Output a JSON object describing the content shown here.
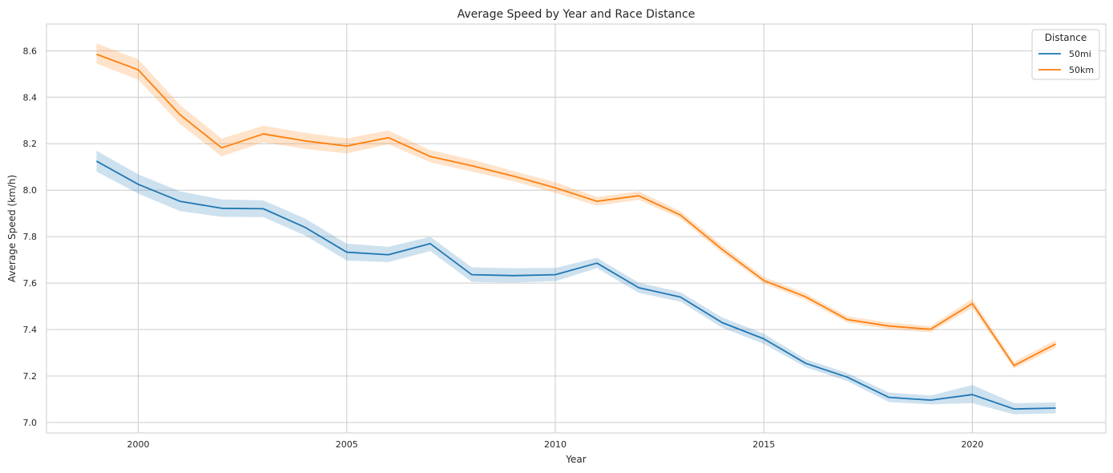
{
  "chart_data": {
    "type": "line",
    "title": "Average Speed by Year and Race Distance",
    "xlabel": "Year",
    "ylabel": "Average Speed (km/h)",
    "xlim": [
      1997.8,
      2023.2
    ],
    "ylim": [
      6.955,
      8.715
    ],
    "xticks": [
      2000,
      2005,
      2010,
      2015,
      2020
    ],
    "yticks": [
      7.0,
      7.2,
      7.4,
      7.6,
      7.8,
      8.0,
      8.2,
      8.4,
      8.6
    ],
    "grid": true,
    "legend": {
      "title": "Distance",
      "position": "top-right"
    },
    "x": [
      1999,
      2000,
      2001,
      2002,
      2003,
      2004,
      2005,
      2006,
      2007,
      2008,
      2009,
      2010,
      2011,
      2012,
      2013,
      2014,
      2015,
      2016,
      2017,
      2018,
      2019,
      2020,
      2021,
      2022
    ],
    "series": [
      {
        "name": "50mi",
        "color": "#1f77b4",
        "values": [
          8.125,
          8.025,
          7.952,
          7.922,
          7.92,
          7.84,
          7.733,
          7.722,
          7.77,
          7.636,
          7.632,
          7.636,
          7.686,
          7.58,
          7.54,
          7.43,
          7.36,
          7.255,
          7.195,
          7.108,
          7.096,
          7.12,
          7.058,
          7.062
        ],
        "ci_low": [
          8.08,
          7.985,
          7.91,
          7.885,
          7.884,
          7.805,
          7.697,
          7.69,
          7.738,
          7.605,
          7.602,
          7.608,
          7.664,
          7.558,
          7.52,
          7.408,
          7.338,
          7.238,
          7.178,
          7.088,
          7.078,
          7.083,
          7.035,
          7.039
        ],
        "ci_high": [
          8.17,
          8.068,
          7.995,
          7.96,
          7.956,
          7.878,
          7.77,
          7.756,
          7.799,
          7.668,
          7.664,
          7.665,
          7.709,
          7.602,
          7.561,
          7.452,
          7.382,
          7.273,
          7.213,
          7.129,
          7.116,
          7.161,
          7.083,
          7.086
        ]
      },
      {
        "name": "50km",
        "color": "#ff7f0e",
        "values": [
          8.585,
          8.518,
          8.325,
          8.182,
          8.242,
          8.212,
          8.19,
          8.226,
          8.145,
          8.105,
          8.06,
          8.01,
          7.952,
          7.976,
          7.893,
          7.745,
          7.611,
          7.541,
          7.443,
          7.415,
          7.401,
          7.512,
          7.245,
          7.338
        ],
        "ci_low": [
          8.545,
          8.475,
          8.285,
          8.145,
          8.206,
          8.178,
          8.158,
          8.198,
          8.12,
          8.08,
          8.038,
          7.988,
          7.933,
          7.958,
          7.878,
          7.73,
          7.598,
          7.527,
          7.43,
          7.402,
          7.388,
          7.493,
          7.232,
          7.322
        ],
        "ci_high": [
          8.632,
          8.563,
          8.367,
          8.222,
          8.277,
          8.247,
          8.223,
          8.257,
          8.172,
          8.132,
          8.082,
          8.034,
          7.971,
          7.995,
          7.91,
          7.762,
          7.626,
          7.556,
          7.457,
          7.43,
          7.415,
          7.532,
          7.261,
          7.355
        ]
      }
    ]
  }
}
